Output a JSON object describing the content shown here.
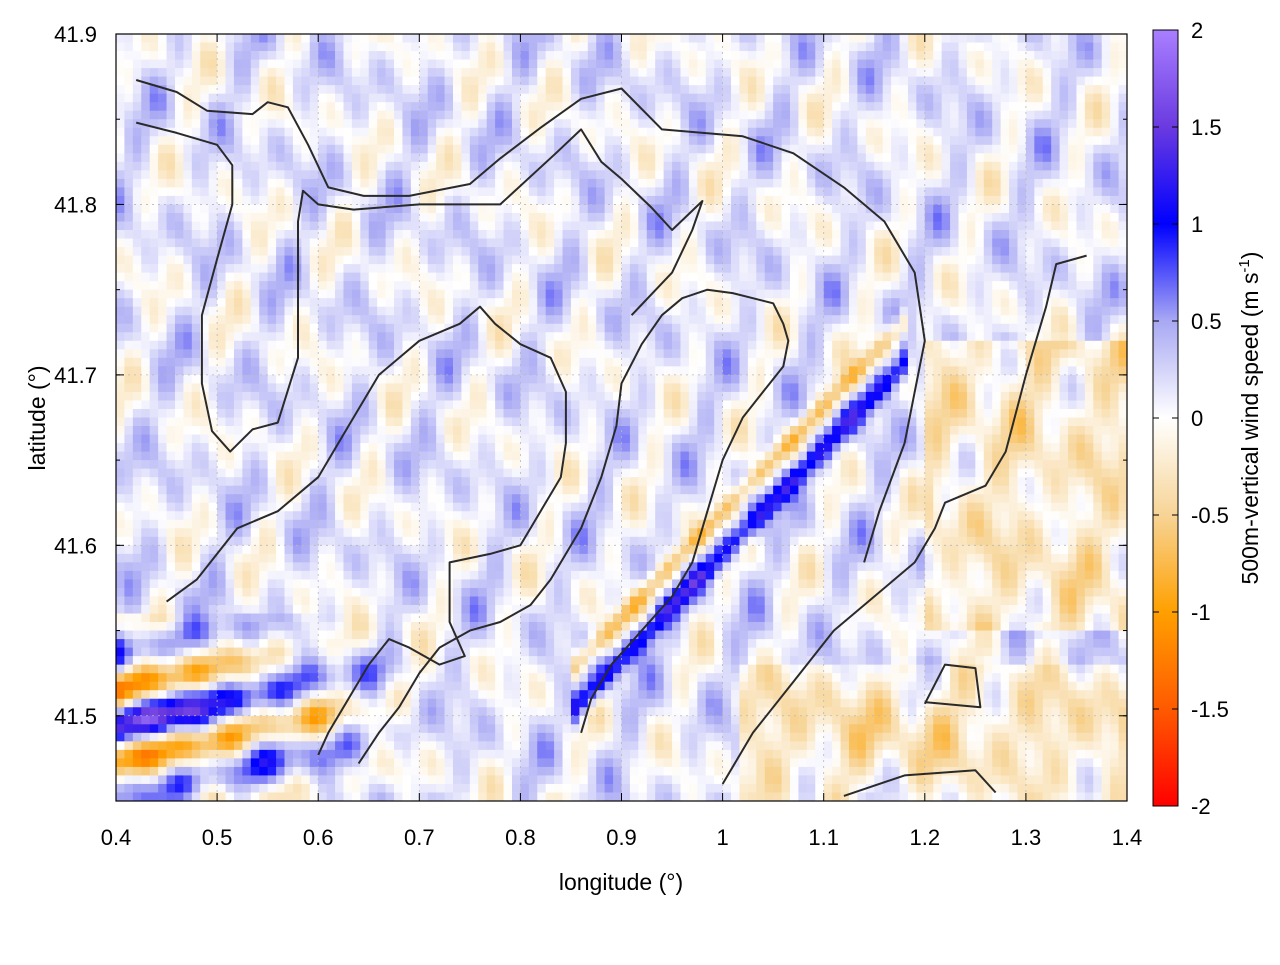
{
  "chart_data": {
    "type": "heatmap",
    "xlabel": "longitude (°)",
    "ylabel": "latitude (°)",
    "colorbar_label": "500m-vertical wind speed (m s",
    "colorbar_label_superscript": "-1",
    "colorbar_label_close": ")",
    "xlim": [
      0.4,
      1.4
    ],
    "ylim": [
      41.45,
      41.9
    ],
    "x_ticks": [
      0.4,
      0.5,
      0.6,
      0.7,
      0.8,
      0.9,
      1.0,
      1.1,
      1.2,
      1.3,
      1.4
    ],
    "x_tick_labels": [
      "0.4",
      "0.5",
      "0.6",
      "0.7",
      "0.8",
      "0.9",
      "1",
      "1.1",
      "1.2",
      "1.3",
      "1.4"
    ],
    "y_ticks": [
      41.5,
      41.6,
      41.7,
      41.8,
      41.9
    ],
    "y_tick_labels": [
      "41.5",
      "41.6",
      "41.7",
      "41.8",
      "41.9"
    ],
    "colorbar_range": [
      -2,
      2
    ],
    "colorbar_ticks": [
      2,
      1.5,
      1,
      0.5,
      0,
      -0.5,
      -1,
      -1.5,
      -2
    ],
    "colorbar_tick_labels": [
      "2",
      "1.5",
      "1",
      "0.5",
      "0",
      "-0.5",
      "-1",
      "-1.5",
      "-2"
    ],
    "colormap": [
      {
        "v": -2.0,
        "color": "#ff0000"
      },
      {
        "v": -1.5,
        "color": "#ff5a00"
      },
      {
        "v": -1.0,
        "color": "#ffa000"
      },
      {
        "v": -0.5,
        "color": "#f7d496"
      },
      {
        "v": 0.0,
        "color": "#ffffff"
      },
      {
        "v": 0.5,
        "color": "#a8a8f4"
      },
      {
        "v": 1.0,
        "color": "#0000ff"
      },
      {
        "v": 1.5,
        "color": "#6a3ae0"
      },
      {
        "v": 2.0,
        "color": "#a97fff"
      }
    ],
    "grid": true,
    "contours": [
      [
        [
          0.42,
          41.873
        ],
        [
          0.46,
          41.866
        ],
        [
          0.49,
          41.855
        ],
        [
          0.535,
          41.853
        ],
        [
          0.55,
          41.86
        ],
        [
          0.57,
          41.857
        ],
        [
          0.59,
          41.835
        ],
        [
          0.61,
          41.81
        ],
        [
          0.645,
          41.805
        ],
        [
          0.69,
          41.805
        ],
        [
          0.75,
          41.812
        ],
        [
          0.78,
          41.827
        ],
        [
          0.82,
          41.845
        ],
        [
          0.86,
          41.862
        ],
        [
          0.9,
          41.868
        ],
        [
          0.94,
          41.844
        ],
        [
          1.02,
          41.84
        ],
        [
          1.07,
          41.83
        ],
        [
          1.12,
          41.81
        ],
        [
          1.16,
          41.79
        ],
        [
          1.19,
          41.76
        ],
        [
          1.2,
          41.72
        ],
        [
          1.18,
          41.66
        ],
        [
          1.155,
          41.62
        ],
        [
          1.14,
          41.59
        ]
      ],
      [
        [
          0.42,
          41.848
        ],
        [
          0.46,
          41.842
        ],
        [
          0.5,
          41.835
        ],
        [
          0.515,
          41.823
        ],
        [
          0.515,
          41.8
        ],
        [
          0.5,
          41.768
        ],
        [
          0.485,
          41.735
        ],
        [
          0.485,
          41.695
        ],
        [
          0.495,
          41.667
        ],
        [
          0.513,
          41.655
        ],
        [
          0.535,
          41.668
        ],
        [
          0.56,
          41.672
        ],
        [
          0.58,
          41.71
        ],
        [
          0.58,
          41.75
        ],
        [
          0.58,
          41.79
        ],
        [
          0.585,
          41.808
        ],
        [
          0.6,
          41.8
        ],
        [
          0.635,
          41.797
        ],
        [
          0.7,
          41.8
        ],
        [
          0.78,
          41.8
        ],
        [
          0.835,
          41.83
        ],
        [
          0.86,
          41.844
        ],
        [
          0.88,
          41.825
        ],
        [
          0.9,
          41.815
        ],
        [
          0.93,
          41.798
        ],
        [
          0.95,
          41.785
        ],
        [
          0.98,
          41.802
        ],
        [
          0.97,
          41.785
        ],
        [
          0.95,
          41.76
        ],
        [
          0.91,
          41.735
        ]
      ],
      [
        [
          0.45,
          41.567
        ],
        [
          0.48,
          41.58
        ],
        [
          0.52,
          41.61
        ],
        [
          0.56,
          41.62
        ],
        [
          0.6,
          41.64
        ],
        [
          0.63,
          41.67
        ],
        [
          0.66,
          41.7
        ],
        [
          0.7,
          41.72
        ],
        [
          0.74,
          41.73
        ],
        [
          0.76,
          41.74
        ],
        [
          0.775,
          41.73
        ],
        [
          0.8,
          41.718
        ],
        [
          0.83,
          41.71
        ],
        [
          0.845,
          41.69
        ],
        [
          0.845,
          41.66
        ],
        [
          0.84,
          41.64
        ],
        [
          0.82,
          41.62
        ],
        [
          0.8,
          41.6
        ],
        [
          0.77,
          41.595
        ],
        [
          0.73,
          41.59
        ],
        [
          0.73,
          41.555
        ],
        [
          0.745,
          41.535
        ],
        [
          0.72,
          41.53
        ],
        [
          0.69,
          41.54
        ],
        [
          0.67,
          41.545
        ],
        [
          0.65,
          41.53
        ],
        [
          0.63,
          41.51
        ],
        [
          0.61,
          41.49
        ],
        [
          0.6,
          41.477
        ]
      ],
      [
        [
          0.64,
          41.472
        ],
        [
          0.66,
          41.49
        ],
        [
          0.68,
          41.505
        ],
        [
          0.7,
          41.525
        ],
        [
          0.72,
          41.54
        ],
        [
          0.75,
          41.55
        ],
        [
          0.78,
          41.555
        ],
        [
          0.81,
          41.565
        ],
        [
          0.83,
          41.58
        ],
        [
          0.86,
          41.61
        ],
        [
          0.88,
          41.64
        ],
        [
          0.895,
          41.67
        ],
        [
          0.9,
          41.695
        ],
        [
          0.92,
          41.718
        ],
        [
          0.94,
          41.735
        ],
        [
          0.96,
          41.745
        ],
        [
          0.985,
          41.75
        ],
        [
          1.01,
          41.748
        ],
        [
          1.03,
          41.745
        ],
        [
          1.05,
          41.742
        ],
        [
          1.06,
          41.73
        ],
        [
          1.065,
          41.72
        ],
        [
          1.06,
          41.705
        ],
        [
          1.04,
          41.69
        ],
        [
          1.02,
          41.675
        ],
        [
          1.0,
          41.65
        ],
        [
          0.985,
          41.62
        ],
        [
          0.97,
          41.59
        ],
        [
          0.95,
          41.57
        ],
        [
          0.92,
          41.55
        ],
        [
          0.89,
          41.53
        ],
        [
          0.87,
          41.51
        ],
        [
          0.86,
          41.49
        ]
      ],
      [
        [
          1.0,
          41.46
        ],
        [
          1.03,
          41.49
        ],
        [
          1.07,
          41.52
        ],
        [
          1.11,
          41.55
        ],
        [
          1.15,
          41.57
        ],
        [
          1.19,
          41.59
        ],
        [
          1.21,
          41.61
        ],
        [
          1.22,
          41.625
        ],
        [
          1.26,
          41.635
        ],
        [
          1.28,
          41.655
        ],
        [
          1.3,
          41.7
        ],
        [
          1.32,
          41.74
        ],
        [
          1.33,
          41.765
        ],
        [
          1.36,
          41.77
        ]
      ],
      [
        [
          1.12,
          41.453
        ],
        [
          1.18,
          41.465
        ],
        [
          1.25,
          41.468
        ],
        [
          1.27,
          41.455
        ]
      ],
      [
        [
          1.2,
          41.507
        ],
        [
          1.22,
          41.53
        ],
        [
          1.25,
          41.528
        ],
        [
          1.255,
          41.505
        ],
        [
          1.2,
          41.508
        ]
      ]
    ]
  }
}
